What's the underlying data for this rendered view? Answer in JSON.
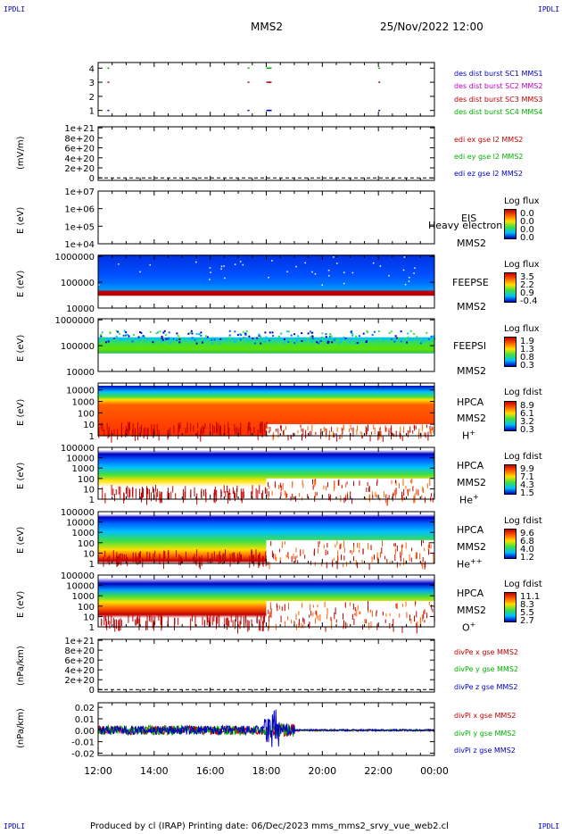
{
  "header": {
    "corner_tl": "IPDLI",
    "corner_tr": "IPDLI",
    "corner_bl": "IPDLI",
    "corner_br": "IPDLI",
    "spacecraft": "MMS2",
    "datetime": "25/Nov/2022 12:00"
  },
  "colors": {
    "blue": "#0000c0",
    "magenta": "#c000c0",
    "red": "#c00000",
    "green": "#00b000"
  },
  "panels": {
    "p1": {
      "legend": [
        "des dist burst SC1 MMS1",
        "des dist burst SC2 MMS2",
        "des dist burst SC3 MMS3",
        "des dist burst SC4 MMS4"
      ]
    },
    "p2": {
      "ylabel": "(mV/m)",
      "legend": [
        "edi ex gse l2 MMS2",
        "edi ey gse l2 MMS2",
        "edi ez gse l2 MMS2"
      ]
    },
    "p3": {
      "ylabel": "E (eV)",
      "label1": "EIS",
      "label2": "MMS2",
      "overlay": "Heavy electron to",
      "cb_title": "Log flux",
      "cb_vals": [
        "0.0",
        "0.0",
        "0.0",
        "0.0"
      ]
    },
    "p4": {
      "ylabel": "E (eV)",
      "label1": "FEEPSE",
      "label2": "MMS2",
      "cb_title": "Log flux",
      "cb_vals": [
        "3.5",
        "2.2",
        "0.9",
        "-0.4"
      ]
    },
    "p5": {
      "ylabel": "E (eV)",
      "label1": "FEEPSI",
      "label2": "MMS2",
      "cb_title": "Log flux",
      "cb_vals": [
        "1.9",
        "1.3",
        "0.8",
        "0.3"
      ]
    },
    "p6": {
      "ylabel": "E (eV)",
      "label1": "HPCA",
      "label2": "MMS2",
      "species": "H",
      "sup": "+",
      "cb_title": "Log fdist",
      "cb_vals": [
        "8.9",
        "6.1",
        "3.2",
        "0.3"
      ]
    },
    "p7": {
      "ylabel": "E (eV)",
      "label1": "HPCA",
      "label2": "MMS2",
      "species": "He",
      "sup": "+",
      "cb_title": "Log fdist",
      "cb_vals": [
        "9.9",
        "7.1",
        "4.3",
        "1.5"
      ]
    },
    "p8": {
      "ylabel": "E (eV)",
      "label1": "HPCA",
      "label2": "MMS2",
      "species": "He",
      "sup": "++",
      "cb_title": "Log fdist",
      "cb_vals": [
        "9.6",
        "6.8",
        "4.0",
        "1.2"
      ]
    },
    "p9": {
      "ylabel": "E (eV)",
      "label1": "HPCA",
      "label2": "MMS2",
      "species": "O",
      "sup": "+",
      "cb_title": "Log fdist",
      "cb_vals": [
        "11.1",
        "8.3",
        "5.5",
        "2.7"
      ]
    },
    "p10": {
      "ylabel": "(nPa/km)",
      "legend": [
        "divPe x gse MMS2",
        "divPe y gse MMS2",
        "divPe z gse MMS2"
      ]
    },
    "p11": {
      "ylabel": "(nPa/km)",
      "legend": [
        "divPi x gse MMS2",
        "divPi y gse MMS2",
        "divPi z gse MMS2"
      ]
    }
  },
  "footer": {
    "text": "Produced by cl (IRAP)   Printing date: 06/Dec/2023   mms_mms2_srvy_vue_web2.cl"
  },
  "chart_data": [
    {
      "type": "scatter",
      "panel": "burst availability",
      "yticks": [
        "1",
        "2",
        "3",
        "4"
      ],
      "series": [
        {
          "name": "des dist burst SC1 MMS1",
          "color": "#0000c0",
          "y": 1,
          "x": [
            "12:20",
            "17:20",
            "18:00",
            "18:05",
            "22:00"
          ]
        },
        {
          "name": "des dist burst SC2 MMS2",
          "color": "#c000c0",
          "y": 2,
          "x": []
        },
        {
          "name": "des dist burst SC3 MMS3",
          "color": "#c00000",
          "y": 3,
          "x": [
            "12:20",
            "17:20",
            "18:00",
            "18:05",
            "22:00"
          ]
        },
        {
          "name": "des dist burst SC4 MMS4",
          "color": "#00b000",
          "y": 4,
          "x": [
            "12:20",
            "17:20",
            "18:00",
            "18:05",
            "22:00"
          ]
        }
      ]
    },
    {
      "type": "line",
      "panel": "EDI E field",
      "ylabel": "(mV/m)",
      "yticks": [
        "0",
        "2e+20",
        "4e+20",
        "6e+20",
        "8e+20",
        "1e+21"
      ],
      "ylim": [
        0,
        1e+21
      ],
      "series": []
    },
    {
      "type": "heatmap",
      "panel": "EIS",
      "ylabel": "E (eV)",
      "yticks": [
        "1e+04",
        "1e+05",
        "1e+06",
        "1e+07"
      ],
      "ylim": [
        10000,
        10000000
      ],
      "scale": "log"
    },
    {
      "type": "heatmap",
      "panel": "FEEPS electrons",
      "ylabel": "E (eV)",
      "yticks": [
        "10000",
        "100000",
        "1000000"
      ],
      "ylim": [
        10000,
        1000000
      ],
      "scale": "log"
    },
    {
      "type": "heatmap",
      "panel": "FEEPS ions",
      "ylabel": "E (eV)",
      "yticks": [
        "10000",
        "100000",
        "1000000"
      ],
      "ylim": [
        10000,
        1000000
      ],
      "scale": "log"
    },
    {
      "type": "heatmap",
      "panel": "HPCA H+",
      "ylabel": "E (eV)",
      "yticks": [
        "1",
        "10",
        "100",
        "1000",
        "10000"
      ],
      "ylim": [
        1,
        40000
      ],
      "scale": "log"
    },
    {
      "type": "heatmap",
      "panel": "HPCA He+",
      "ylabel": "E (eV)",
      "yticks": [
        "1",
        "10",
        "100",
        "1000",
        "10000",
        "100000"
      ],
      "ylim": [
        1,
        100000
      ],
      "scale": "log"
    },
    {
      "type": "heatmap",
      "panel": "HPCA He++",
      "ylabel": "E (eV)",
      "yticks": [
        "1",
        "10",
        "100",
        "1000",
        "10000",
        "100000"
      ],
      "ylim": [
        1,
        100000
      ],
      "scale": "log"
    },
    {
      "type": "heatmap",
      "panel": "HPCA O+",
      "ylabel": "E (eV)",
      "yticks": [
        "1",
        "10",
        "100",
        "1000",
        "10000",
        "100000"
      ],
      "ylim": [
        1,
        100000
      ],
      "scale": "log"
    },
    {
      "type": "line",
      "panel": "divPe",
      "ylabel": "(nPa/km)",
      "yticks": [
        "0",
        "2e+20",
        "4e+20",
        "6e+20",
        "8e+20",
        "1e+21"
      ],
      "ylim": [
        0,
        1e+21
      ],
      "series": []
    },
    {
      "type": "line",
      "panel": "divPi",
      "ylabel": "(nPa/km)",
      "yticks": [
        "-0.02",
        "-0.01",
        "0.00",
        "0.01",
        "0.02"
      ],
      "ylim": [
        -0.022,
        0.024
      ],
      "series": [
        {
          "name": "divPi x gse MMS2",
          "color": "#c00000"
        },
        {
          "name": "divPi y gse MMS2",
          "color": "#00b000"
        },
        {
          "name": "divPi z gse MMS2",
          "color": "#0000c0",
          "x": [
            "12:00",
            "13:00",
            "14:00",
            "15:00",
            "16:00",
            "17:00",
            "17:30",
            "18:00",
            "18:20",
            "18:40",
            "19:00",
            "20:00",
            "21:00",
            "22:00",
            "23:00",
            "00:00"
          ],
          "y": [
            0.0,
            0.0,
            0.0,
            0.0,
            0.0,
            0.0,
            0.0,
            0.015,
            0.02,
            -0.01,
            0.0,
            0.0,
            0.0,
            0.0,
            0.0,
            0.0
          ]
        }
      ]
    },
    {
      "type": "axis",
      "xlabel": "",
      "xticks": [
        "12:00",
        "14:00",
        "16:00",
        "18:00",
        "20:00",
        "22:00",
        "00:00"
      ]
    }
  ]
}
